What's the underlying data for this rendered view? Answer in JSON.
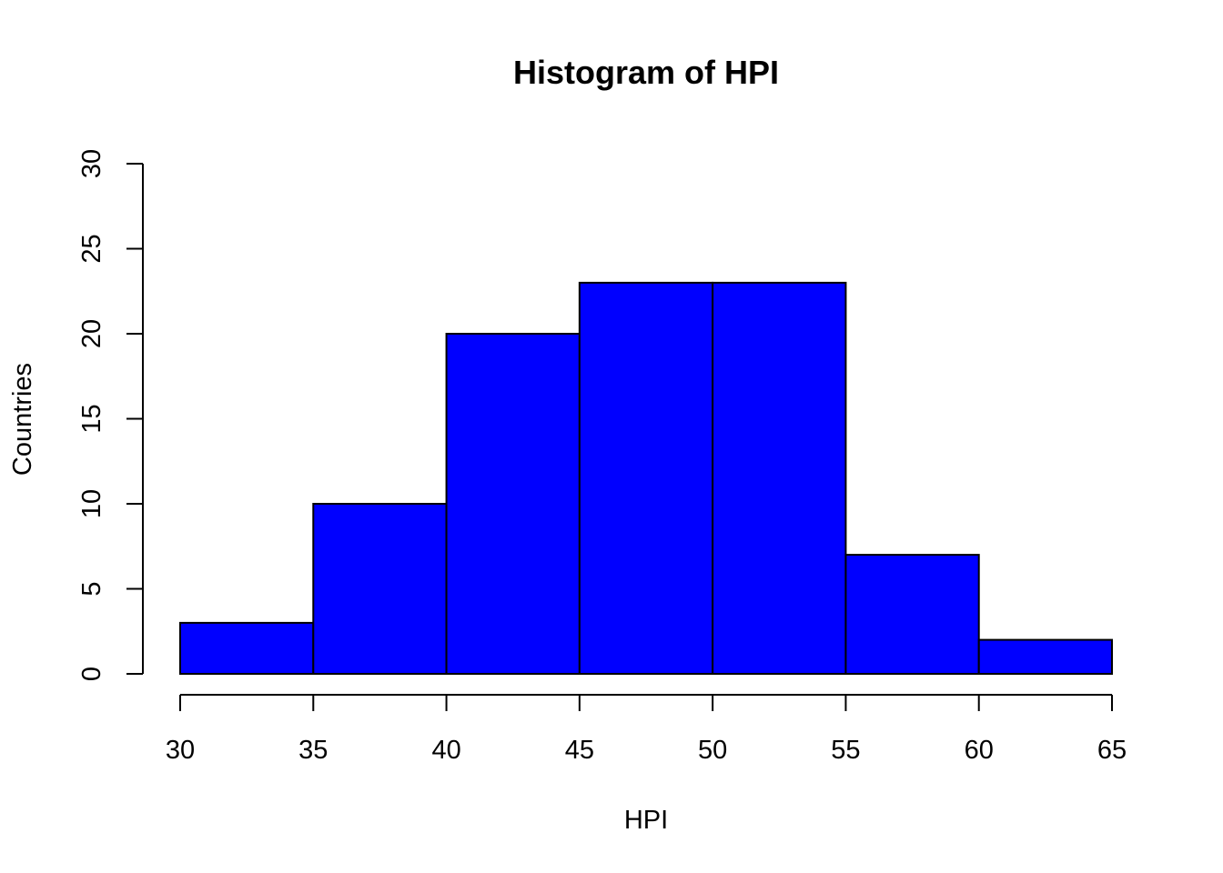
{
  "chart_data": {
    "type": "bar",
    "title": "Histogram of HPI",
    "xlabel": "HPI",
    "ylabel": "Countries",
    "bins": [
      {
        "start": 30,
        "end": 35,
        "count": 3
      },
      {
        "start": 35,
        "end": 40,
        "count": 10
      },
      {
        "start": 40,
        "end": 45,
        "count": 20
      },
      {
        "start": 45,
        "end": 50,
        "count": 23
      },
      {
        "start": 50,
        "end": 55,
        "count": 23
      },
      {
        "start": 55,
        "end": 60,
        "count": 7
      },
      {
        "start": 60,
        "end": 65,
        "count": 2
      }
    ],
    "xlim": [
      30,
      65
    ],
    "ylim": [
      0,
      30
    ],
    "x_ticks": [
      "30",
      "35",
      "40",
      "45",
      "50",
      "55",
      "60",
      "65"
    ],
    "y_ticks": [
      "0",
      "5",
      "10",
      "15",
      "20",
      "25",
      "30"
    ],
    "bar_color": "#0000ff",
    "grid": false,
    "legend": "none"
  }
}
